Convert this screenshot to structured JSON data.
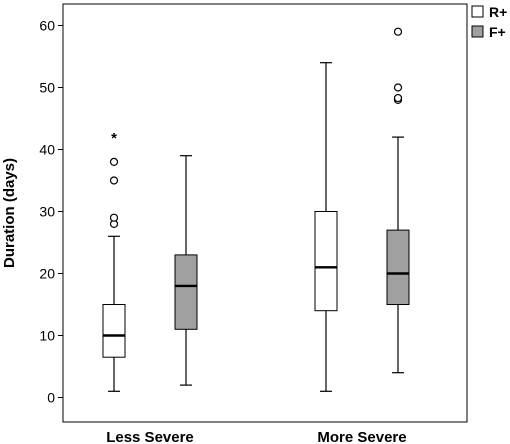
{
  "chart_data": {
    "type": "boxplot",
    "ylabel": "Duration (days)",
    "xlabel": "",
    "ylim": [
      -3,
      63
    ],
    "yticks": [
      0,
      10,
      20,
      30,
      40,
      50,
      60
    ],
    "grid": false,
    "legend_position": "top-right, outside plot",
    "categories": [
      "Less Severe",
      "More Severe"
    ],
    "series": [
      {
        "name": "R+",
        "color": "#ffffff",
        "boxes": [
          {
            "category": "Less Severe",
            "min": 1,
            "q1": 6.5,
            "median": 10,
            "q3": 15,
            "max": 26,
            "outliers": [
              28,
              29,
              35,
              38
            ],
            "extremes": [
              42
            ]
          },
          {
            "category": "More Severe",
            "min": 1,
            "q1": 14,
            "median": 21,
            "q3": 30,
            "max": 54,
            "outliers": [],
            "extremes": []
          }
        ]
      },
      {
        "name": "F+",
        "color": "#a0a0a0",
        "boxes": [
          {
            "category": "Less Severe",
            "min": 2,
            "q1": 11,
            "median": 18,
            "q3": 23,
            "max": 39,
            "outliers": [],
            "extremes": []
          },
          {
            "category": "More Severe",
            "min": 4,
            "q1": 15,
            "median": 20,
            "q3": 27,
            "max": 42,
            "outliers": [
              48,
              48.3,
              50,
              59
            ],
            "extremes": []
          }
        ]
      }
    ]
  }
}
